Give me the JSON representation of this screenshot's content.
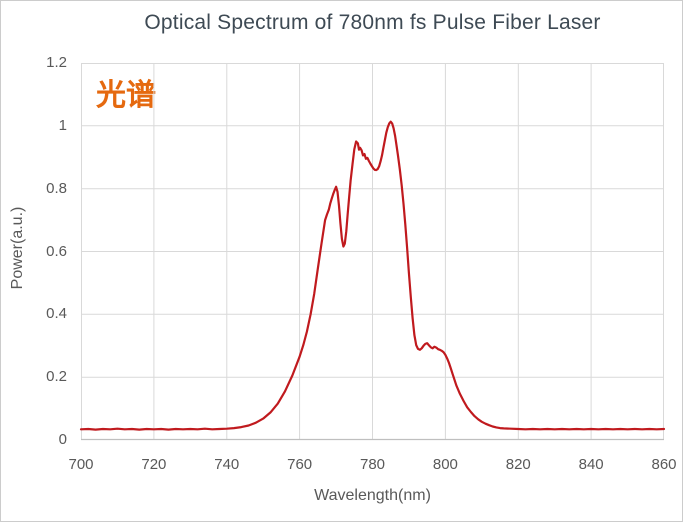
{
  "chart_data": {
    "type": "line",
    "title": "Optical Spectrum of 780nm fs Pulse Fiber Laser",
    "annotation": "光谱",
    "xlabel": "Wavelength(nm)",
    "ylabel": "Power(a.u.)",
    "xlim": [
      700,
      860
    ],
    "ylim": [
      0,
      1.2
    ],
    "x_ticks": [
      700,
      720,
      740,
      760,
      780,
      800,
      820,
      840,
      860
    ],
    "x_tick_labels": [
      "700",
      "720",
      "740",
      "760",
      "780",
      "800",
      "820",
      "840",
      "860"
    ],
    "y_ticks": [
      0,
      0.2,
      0.4,
      0.6,
      0.8,
      1.0,
      1.2
    ],
    "y_tick_labels": [
      "0",
      "0.2",
      "0.4",
      "0.6",
      "0.8",
      "1",
      "1.2"
    ],
    "grid": true,
    "legend_position": "none",
    "colors": {
      "line": "#c01a1e",
      "grid": "#d9d9d9",
      "plot_border": "#d9d9d9",
      "axis_line": "#bfbfbf",
      "title_text": "#3e4a54",
      "tick_text": "#595959",
      "annotation_text": "#e5690f"
    },
    "series": [
      {
        "name": "spectrum",
        "points": [
          [
            700,
            0.034
          ],
          [
            702,
            0.035
          ],
          [
            704,
            0.033
          ],
          [
            706,
            0.035
          ],
          [
            708,
            0.034
          ],
          [
            710,
            0.036
          ],
          [
            712,
            0.034
          ],
          [
            714,
            0.035
          ],
          [
            716,
            0.033
          ],
          [
            718,
            0.035
          ],
          [
            720,
            0.034
          ],
          [
            722,
            0.035
          ],
          [
            724,
            0.033
          ],
          [
            726,
            0.035
          ],
          [
            728,
            0.034
          ],
          [
            730,
            0.035
          ],
          [
            732,
            0.034
          ],
          [
            734,
            0.036
          ],
          [
            736,
            0.034
          ],
          [
            738,
            0.035
          ],
          [
            740,
            0.036
          ],
          [
            742,
            0.038
          ],
          [
            744,
            0.041
          ],
          [
            746,
            0.046
          ],
          [
            748,
            0.055
          ],
          [
            750,
            0.068
          ],
          [
            752,
            0.088
          ],
          [
            754,
            0.116
          ],
          [
            756,
            0.155
          ],
          [
            758,
            0.205
          ],
          [
            760,
            0.265
          ],
          [
            761,
            0.302
          ],
          [
            762,
            0.345
          ],
          [
            763,
            0.4
          ],
          [
            764,
            0.465
          ],
          [
            765,
            0.545
          ],
          [
            766,
            0.625
          ],
          [
            767,
            0.7
          ],
          [
            767.5,
            0.718
          ],
          [
            768,
            0.733
          ],
          [
            768.4,
            0.752
          ],
          [
            768.8,
            0.768
          ],
          [
            769.2,
            0.782
          ],
          [
            769.6,
            0.795
          ],
          [
            770,
            0.806
          ],
          [
            770.4,
            0.79
          ],
          [
            770.8,
            0.745
          ],
          [
            771.2,
            0.69
          ],
          [
            771.6,
            0.64
          ],
          [
            772,
            0.616
          ],
          [
            772.4,
            0.625
          ],
          [
            772.8,
            0.665
          ],
          [
            773.2,
            0.72
          ],
          [
            773.6,
            0.775
          ],
          [
            774,
            0.825
          ],
          [
            774.5,
            0.878
          ],
          [
            775,
            0.925
          ],
          [
            775.5,
            0.95
          ],
          [
            776,
            0.944
          ],
          [
            776.3,
            0.924
          ],
          [
            776.6,
            0.93
          ],
          [
            777,
            0.922
          ],
          [
            777.4,
            0.906
          ],
          [
            777.8,
            0.91
          ],
          [
            778.2,
            0.895
          ],
          [
            778.6,
            0.898
          ],
          [
            779,
            0.888
          ],
          [
            779.4,
            0.88
          ],
          [
            779.8,
            0.872
          ],
          [
            780.2,
            0.865
          ],
          [
            780.6,
            0.86
          ],
          [
            781,
            0.859
          ],
          [
            781.4,
            0.862
          ],
          [
            781.8,
            0.871
          ],
          [
            782.2,
            0.886
          ],
          [
            782.6,
            0.906
          ],
          [
            783,
            0.93
          ],
          [
            783.4,
            0.955
          ],
          [
            783.8,
            0.978
          ],
          [
            784.2,
            0.996
          ],
          [
            784.6,
            1.008
          ],
          [
            785,
            1.013
          ],
          [
            785.4,
            1.007
          ],
          [
            785.8,
            0.992
          ],
          [
            786.2,
            0.968
          ],
          [
            786.6,
            0.938
          ],
          [
            787,
            0.905
          ],
          [
            787.5,
            0.862
          ],
          [
            788,
            0.81
          ],
          [
            788.5,
            0.752
          ],
          [
            789,
            0.686
          ],
          [
            789.5,
            0.612
          ],
          [
            790,
            0.532
          ],
          [
            790.5,
            0.455
          ],
          [
            791,
            0.388
          ],
          [
            791.5,
            0.334
          ],
          [
            792,
            0.302
          ],
          [
            792.5,
            0.29
          ],
          [
            793,
            0.287
          ],
          [
            793.5,
            0.292
          ],
          [
            794,
            0.3
          ],
          [
            794.5,
            0.306
          ],
          [
            795,
            0.308
          ],
          [
            795.5,
            0.301
          ],
          [
            796,
            0.295
          ],
          [
            796.5,
            0.292
          ],
          [
            797,
            0.297
          ],
          [
            797.5,
            0.294
          ],
          [
            798,
            0.289
          ],
          [
            798.5,
            0.287
          ],
          [
            799,
            0.284
          ],
          [
            799.5,
            0.279
          ],
          [
            800,
            0.271
          ],
          [
            800.5,
            0.259
          ],
          [
            801,
            0.245
          ],
          [
            801.5,
            0.228
          ],
          [
            802,
            0.209
          ],
          [
            803,
            0.174
          ],
          [
            804,
            0.147
          ],
          [
            805,
            0.124
          ],
          [
            806,
            0.104
          ],
          [
            807,
            0.089
          ],
          [
            808,
            0.076
          ],
          [
            809,
            0.066
          ],
          [
            810,
            0.058
          ],
          [
            811,
            0.052
          ],
          [
            812,
            0.047
          ],
          [
            813,
            0.043
          ],
          [
            814,
            0.04
          ],
          [
            815,
            0.038
          ],
          [
            816,
            0.037
          ],
          [
            818,
            0.036
          ],
          [
            820,
            0.035
          ],
          [
            822,
            0.034
          ],
          [
            824,
            0.035
          ],
          [
            826,
            0.034
          ],
          [
            828,
            0.035
          ],
          [
            830,
            0.034
          ],
          [
            832,
            0.035
          ],
          [
            834,
            0.034
          ],
          [
            836,
            0.035
          ],
          [
            838,
            0.034
          ],
          [
            840,
            0.035
          ],
          [
            842,
            0.034
          ],
          [
            844,
            0.035
          ],
          [
            846,
            0.034
          ],
          [
            848,
            0.035
          ],
          [
            850,
            0.034
          ],
          [
            852,
            0.035
          ],
          [
            854,
            0.034
          ],
          [
            856,
            0.035
          ],
          [
            858,
            0.034
          ],
          [
            860,
            0.035
          ]
        ]
      }
    ]
  }
}
